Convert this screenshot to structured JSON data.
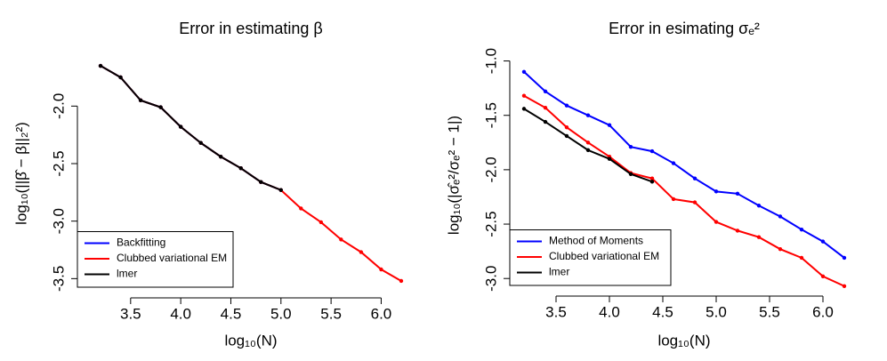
{
  "chart_data": [
    {
      "type": "line",
      "title": "Error in estimating β",
      "x_label": "log₁₀(N)",
      "y_label": "log₁₀(||β̂ − β||₂²)",
      "x": [
        3.2,
        3.4,
        3.6,
        3.8,
        4.0,
        4.2,
        4.4,
        4.6,
        4.8,
        5.0,
        5.2,
        5.4,
        5.6,
        5.8,
        6.0,
        6.2
      ],
      "series": [
        {
          "name": "Backfitting",
          "color": "#0000ff",
          "values": [
            -1.65,
            -1.75,
            -1.95,
            -2.01,
            -2.18,
            -2.32,
            -2.44,
            -2.54,
            -2.66,
            -2.73,
            null,
            null,
            null,
            null,
            null,
            null
          ]
        },
        {
          "name": "Clubbed variational EM",
          "color": "#ff0000",
          "values": [
            -1.65,
            -1.75,
            -1.95,
            -2.01,
            -2.18,
            -2.32,
            -2.44,
            -2.54,
            -2.66,
            -2.73,
            -2.89,
            -3.01,
            -3.16,
            -3.27,
            -3.42,
            -3.52
          ]
        },
        {
          "name": "lmer",
          "color": "#000000",
          "values": [
            -1.65,
            -1.75,
            -1.95,
            -2.01,
            -2.18,
            -2.32,
            -2.44,
            -2.54,
            -2.66,
            -2.73,
            null,
            null,
            null,
            null,
            null,
            null
          ]
        }
      ],
      "xlim": [
        3.08,
        6.32
      ],
      "ylim": [
        -3.59,
        -1.58
      ],
      "xticks": [
        3.5,
        {
          "value": 4,
          "label": "4.0"
        },
        4.5,
        {
          "value": 5,
          "label": "5.0"
        },
        5.5,
        {
          "value": 6,
          "label": "6.0"
        }
      ],
      "yticks": [
        {
          "value": -2,
          "label": "-2.0"
        },
        {
          "value": -2.5,
          "label": "-2.5"
        },
        {
          "value": -3,
          "label": "-3.0"
        },
        {
          "value": -3.5,
          "label": "-3.5"
        }
      ],
      "legend": "bottomleft"
    },
    {
      "type": "line",
      "title": "Error in esimating σₑ²",
      "x_label": "log₁₀(N)",
      "y_label": "log₁₀(|σ̂ₑ²/σₑ² − 1|)",
      "x": [
        3.2,
        3.4,
        3.6,
        3.8,
        4.0,
        4.2,
        4.4,
        4.6,
        4.8,
        5.0,
        5.2,
        5.4,
        5.6,
        5.8,
        6.0,
        6.2
      ],
      "series": [
        {
          "name": "Method of Moments",
          "color": "#0000ff",
          "values": [
            -1.1,
            -1.28,
            -1.41,
            -1.5,
            -1.59,
            -1.79,
            -1.83,
            -1.94,
            -2.08,
            -2.2,
            -2.22,
            -2.33,
            -2.43,
            -2.55,
            -2.66,
            -2.81
          ]
        },
        {
          "name": "Clubbed variational EM",
          "color": "#ff0000",
          "values": [
            -1.32,
            -1.43,
            -1.61,
            -1.75,
            -1.88,
            -2.03,
            -2.08,
            -2.27,
            -2.3,
            -2.48,
            -2.56,
            -2.62,
            -2.73,
            -2.81,
            -2.98,
            -3.07
          ]
        },
        {
          "name": "lmer",
          "color": "#000000",
          "values": [
            -1.44,
            -1.56,
            -1.69,
            -1.82,
            -1.9,
            -2.04,
            -2.11,
            null,
            null,
            null,
            null,
            null,
            null,
            null,
            null,
            null
          ]
        }
      ],
      "xlim": [
        3.08,
        6.32
      ],
      "ylim": [
        -3.08,
        -1.02
      ],
      "xticks": [
        3.5,
        {
          "value": 4,
          "label": "4.0"
        },
        4.5,
        {
          "value": 5,
          "label": "5.0"
        },
        5.5,
        {
          "value": 6,
          "label": "6.0"
        }
      ],
      "yticks": [
        {
          "value": -1,
          "label": "-1.0"
        },
        {
          "value": -1.5,
          "label": "-1.5"
        },
        {
          "value": -2,
          "label": "-2.0"
        },
        {
          "value": -2.5,
          "label": "-2.5"
        },
        {
          "value": -3,
          "label": "-3.0"
        }
      ],
      "legend": "bottomleft"
    }
  ]
}
